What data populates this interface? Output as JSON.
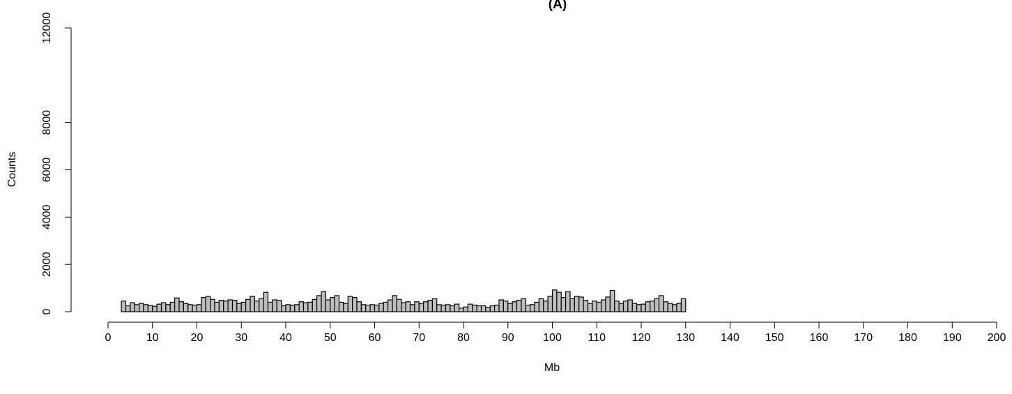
{
  "chart_data": {
    "type": "bar",
    "title": "(A)",
    "xlabel": "Mb",
    "ylabel": "Counts",
    "xlim": [
      0,
      200
    ],
    "ylim": [
      0,
      12000
    ],
    "x_ticks": [
      "0",
      "10",
      "20",
      "30",
      "40",
      "50",
      "60",
      "70",
      "80",
      "90",
      "100",
      "110",
      "120",
      "130",
      "140",
      "150",
      "160",
      "170",
      "180",
      "190",
      "200"
    ],
    "y_ticks": [
      "0",
      "2000",
      "4000",
      "6000",
      "8000",
      "12000"
    ],
    "bin_width_mb": 1,
    "bar_color": "#bebebe",
    "bins": [
      {
        "x": 3,
        "y": 450
      },
      {
        "x": 4,
        "y": 250
      },
      {
        "x": 5,
        "y": 380
      },
      {
        "x": 6,
        "y": 300
      },
      {
        "x": 7,
        "y": 350
      },
      {
        "x": 8,
        "y": 300
      },
      {
        "x": 9,
        "y": 260
      },
      {
        "x": 10,
        "y": 230
      },
      {
        "x": 11,
        "y": 320
      },
      {
        "x": 12,
        "y": 380
      },
      {
        "x": 13,
        "y": 300
      },
      {
        "x": 14,
        "y": 400
      },
      {
        "x": 15,
        "y": 580
      },
      {
        "x": 16,
        "y": 420
      },
      {
        "x": 17,
        "y": 350
      },
      {
        "x": 18,
        "y": 300
      },
      {
        "x": 19,
        "y": 280
      },
      {
        "x": 20,
        "y": 300
      },
      {
        "x": 21,
        "y": 600
      },
      {
        "x": 22,
        "y": 650
      },
      {
        "x": 23,
        "y": 520
      },
      {
        "x": 24,
        "y": 400
      },
      {
        "x": 25,
        "y": 480
      },
      {
        "x": 26,
        "y": 450
      },
      {
        "x": 27,
        "y": 500
      },
      {
        "x": 28,
        "y": 480
      },
      {
        "x": 29,
        "y": 350
      },
      {
        "x": 30,
        "y": 400
      },
      {
        "x": 31,
        "y": 520
      },
      {
        "x": 32,
        "y": 650
      },
      {
        "x": 33,
        "y": 450
      },
      {
        "x": 34,
        "y": 550
      },
      {
        "x": 35,
        "y": 820
      },
      {
        "x": 36,
        "y": 400
      },
      {
        "x": 37,
        "y": 500
      },
      {
        "x": 38,
        "y": 480
      },
      {
        "x": 39,
        "y": 250
      },
      {
        "x": 40,
        "y": 300
      },
      {
        "x": 41,
        "y": 280
      },
      {
        "x": 42,
        "y": 300
      },
      {
        "x": 43,
        "y": 420
      },
      {
        "x": 44,
        "y": 380
      },
      {
        "x": 45,
        "y": 400
      },
      {
        "x": 46,
        "y": 520
      },
      {
        "x": 47,
        "y": 680
      },
      {
        "x": 48,
        "y": 850
      },
      {
        "x": 49,
        "y": 500
      },
      {
        "x": 50,
        "y": 600
      },
      {
        "x": 51,
        "y": 680
      },
      {
        "x": 52,
        "y": 400
      },
      {
        "x": 53,
        "y": 350
      },
      {
        "x": 54,
        "y": 650
      },
      {
        "x": 55,
        "y": 600
      },
      {
        "x": 56,
        "y": 420
      },
      {
        "x": 57,
        "y": 300
      },
      {
        "x": 58,
        "y": 280
      },
      {
        "x": 59,
        "y": 300
      },
      {
        "x": 60,
        "y": 280
      },
      {
        "x": 61,
        "y": 350
      },
      {
        "x": 62,
        "y": 400
      },
      {
        "x": 63,
        "y": 500
      },
      {
        "x": 64,
        "y": 680
      },
      {
        "x": 65,
        "y": 520
      },
      {
        "x": 66,
        "y": 380
      },
      {
        "x": 67,
        "y": 420
      },
      {
        "x": 68,
        "y": 300
      },
      {
        "x": 69,
        "y": 420
      },
      {
        "x": 70,
        "y": 350
      },
      {
        "x": 71,
        "y": 420
      },
      {
        "x": 72,
        "y": 480
      },
      {
        "x": 73,
        "y": 550
      },
      {
        "x": 74,
        "y": 300
      },
      {
        "x": 75,
        "y": 280
      },
      {
        "x": 76,
        "y": 300
      },
      {
        "x": 77,
        "y": 250
      },
      {
        "x": 78,
        "y": 320
      },
      {
        "x": 79,
        "y": 150
      },
      {
        "x": 80,
        "y": 200
      },
      {
        "x": 81,
        "y": 320
      },
      {
        "x": 82,
        "y": 280
      },
      {
        "x": 83,
        "y": 250
      },
      {
        "x": 84,
        "y": 250
      },
      {
        "x": 85,
        "y": 180
      },
      {
        "x": 86,
        "y": 250
      },
      {
        "x": 87,
        "y": 280
      },
      {
        "x": 88,
        "y": 500
      },
      {
        "x": 89,
        "y": 450
      },
      {
        "x": 90,
        "y": 350
      },
      {
        "x": 91,
        "y": 420
      },
      {
        "x": 92,
        "y": 480
      },
      {
        "x": 93,
        "y": 550
      },
      {
        "x": 94,
        "y": 280
      },
      {
        "x": 95,
        "y": 300
      },
      {
        "x": 96,
        "y": 400
      },
      {
        "x": 97,
        "y": 550
      },
      {
        "x": 98,
        "y": 450
      },
      {
        "x": 99,
        "y": 650
      },
      {
        "x": 100,
        "y": 920
      },
      {
        "x": 101,
        "y": 820
      },
      {
        "x": 102,
        "y": 600
      },
      {
        "x": 103,
        "y": 850
      },
      {
        "x": 104,
        "y": 550
      },
      {
        "x": 105,
        "y": 650
      },
      {
        "x": 106,
        "y": 620
      },
      {
        "x": 107,
        "y": 480
      },
      {
        "x": 108,
        "y": 350
      },
      {
        "x": 109,
        "y": 450
      },
      {
        "x": 110,
        "y": 400
      },
      {
        "x": 111,
        "y": 500
      },
      {
        "x": 112,
        "y": 620
      },
      {
        "x": 113,
        "y": 900
      },
      {
        "x": 114,
        "y": 450
      },
      {
        "x": 115,
        "y": 350
      },
      {
        "x": 116,
        "y": 450
      },
      {
        "x": 117,
        "y": 500
      },
      {
        "x": 118,
        "y": 350
      },
      {
        "x": 119,
        "y": 300
      },
      {
        "x": 120,
        "y": 320
      },
      {
        "x": 121,
        "y": 420
      },
      {
        "x": 122,
        "y": 450
      },
      {
        "x": 123,
        "y": 550
      },
      {
        "x": 124,
        "y": 680
      },
      {
        "x": 125,
        "y": 420
      },
      {
        "x": 126,
        "y": 350
      },
      {
        "x": 127,
        "y": 300
      },
      {
        "x": 128,
        "y": 350
      },
      {
        "x": 129,
        "y": 550
      }
    ]
  }
}
